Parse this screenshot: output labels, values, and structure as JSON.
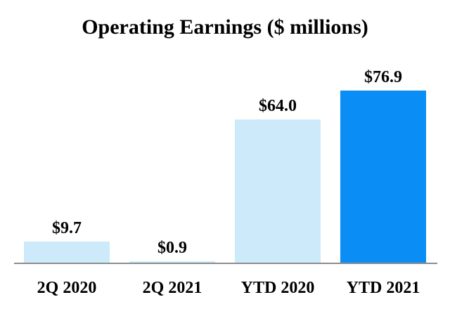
{
  "chart_data": {
    "type": "bar",
    "title": "Operating Earnings ($ millions)",
    "categories": [
      "2Q 2020",
      "2Q 2021",
      "YTD 2020",
      "YTD 2021"
    ],
    "values": [
      9.7,
      0.9,
      64.0,
      76.9
    ],
    "data_labels": [
      "$9.7",
      "$0.9",
      "$64.0",
      "$76.9"
    ],
    "colors": [
      "#cdeafb",
      "#cdeafb",
      "#cdeafb",
      "#0a8ef6"
    ],
    "axis_color": "#8c8c8c",
    "ylim": [
      0,
      80
    ],
    "grid": false,
    "legend": "none"
  }
}
